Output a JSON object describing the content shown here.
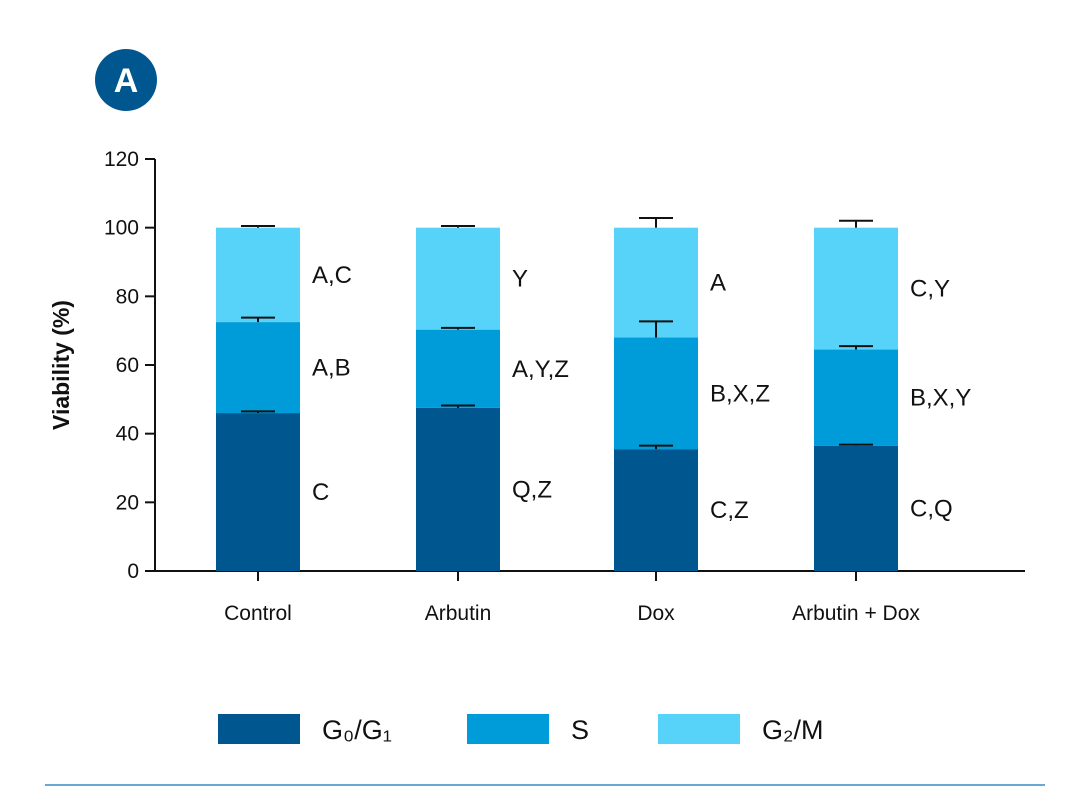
{
  "panel_label": "A",
  "colors": {
    "g0g1": "#00578f",
    "s": "#009cd9",
    "g2m": "#57d3fa",
    "panel_badge": "#00578f",
    "axis": "#111111",
    "rule": "#6aa8d4"
  },
  "chart_data": {
    "type": "bar",
    "stacked": true,
    "title": "",
    "xlabel": "",
    "ylabel": "Viability (%)",
    "ylim": [
      0,
      120
    ],
    "yticks": [
      0,
      20,
      40,
      60,
      80,
      100,
      120
    ],
    "categories": [
      "Control",
      "Arbutin",
      "Dox",
      "Arbutin + Dox"
    ],
    "series": [
      {
        "name": "G₀/G₁",
        "color_key": "g0g1",
        "values": [
          46,
          47.5,
          35.5,
          36.5
        ],
        "errors": [
          0.5,
          0.7,
          1.0,
          0.3
        ],
        "labels": [
          "C",
          "Q,Z",
          "C,Z",
          "C,Q"
        ]
      },
      {
        "name": "S",
        "color_key": "s",
        "values": [
          26.5,
          22.8,
          32.5,
          28
        ],
        "errors": [
          1.3,
          0.5,
          4.7,
          1.0
        ],
        "labels": [
          "A,B",
          "A,Y,Z",
          "B,X,Z",
          "B,X,Y"
        ]
      },
      {
        "name": "G₂/M",
        "color_key": "g2m",
        "values": [
          27.5,
          29.7,
          32,
          35.5
        ],
        "errors": [
          0.5,
          0.5,
          2.8,
          2.0
        ],
        "labels": [
          "A,C",
          "Y",
          "A",
          "C,Y"
        ]
      }
    ],
    "legend_position": "bottom",
    "grid": false
  }
}
